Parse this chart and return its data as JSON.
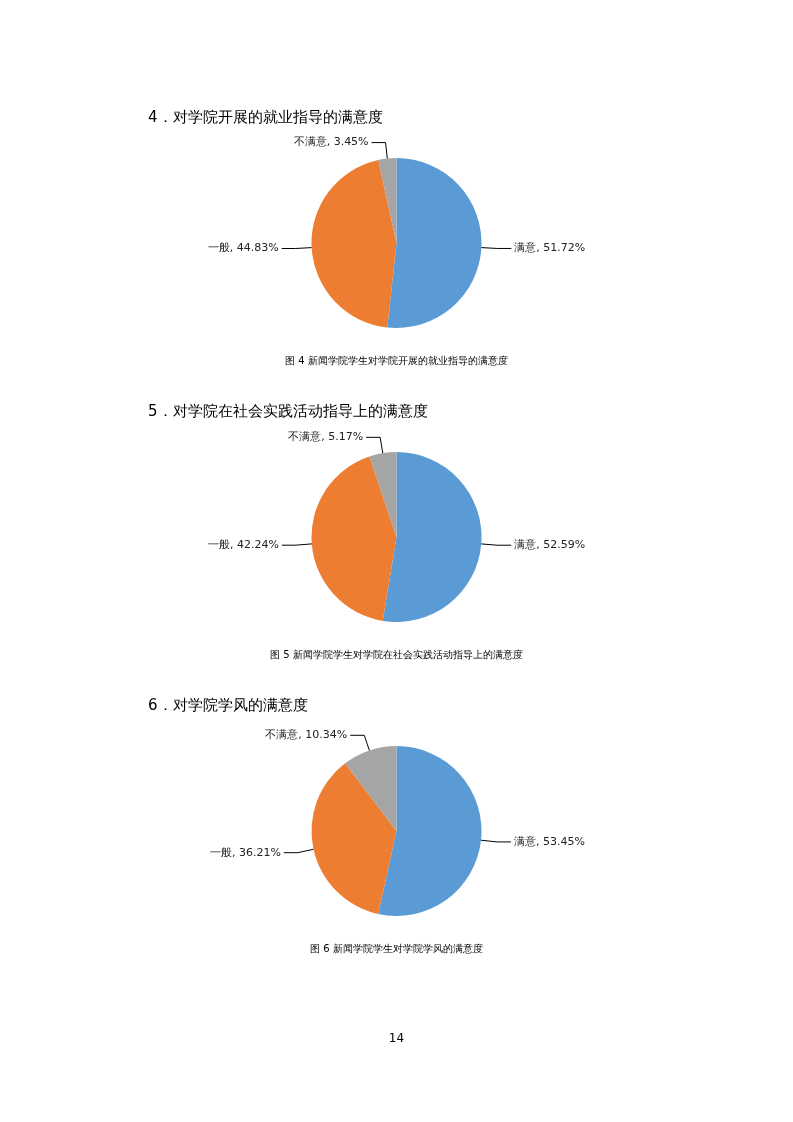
{
  "chart_data": [
    {
      "type": "pie",
      "title": "4．对学院开展的就业指导的满意度",
      "categories": [
        "满意",
        "一般",
        "不满意"
      ],
      "values": [
        51.72,
        44.83,
        3.45
      ],
      "value_labels": [
        "51.72%",
        "44.83%",
        "3.45%"
      ],
      "colors": [
        "#5b9bd5",
        "#ed7d31",
        "#a5a5a5"
      ],
      "annotations": [
        "图 4  新闻学院学生对学院开展的就业指导的满意度"
      ]
    },
    {
      "type": "pie",
      "title": "5．对学院在社会实践活动指导上的满意度",
      "categories": [
        "满意",
        "一般",
        "不满意"
      ],
      "values": [
        52.59,
        42.24,
        5.17
      ],
      "value_labels": [
        "52.59%",
        "42.24%",
        "5.17%"
      ],
      "colors": [
        "#5b9bd5",
        "#ed7d31",
        "#a5a5a5"
      ],
      "annotations": [
        "图 5    新闻学院学生对学院在社会实践活动指导上的满意度"
      ]
    },
    {
      "type": "pie",
      "title": "6．对学院学风的满意度",
      "categories": [
        "满意",
        "一般",
        "不满意"
      ],
      "values": [
        53.45,
        36.21,
        10.34
      ],
      "value_labels": [
        "53.45%",
        "36.21%",
        "10.34%"
      ],
      "colors": [
        "#5b9bd5",
        "#ed7d31",
        "#a5a5a5"
      ],
      "annotations": [
        "图 6    新闻学院学生对学院学风的满意度",
        "14"
      ]
    }
  ]
}
